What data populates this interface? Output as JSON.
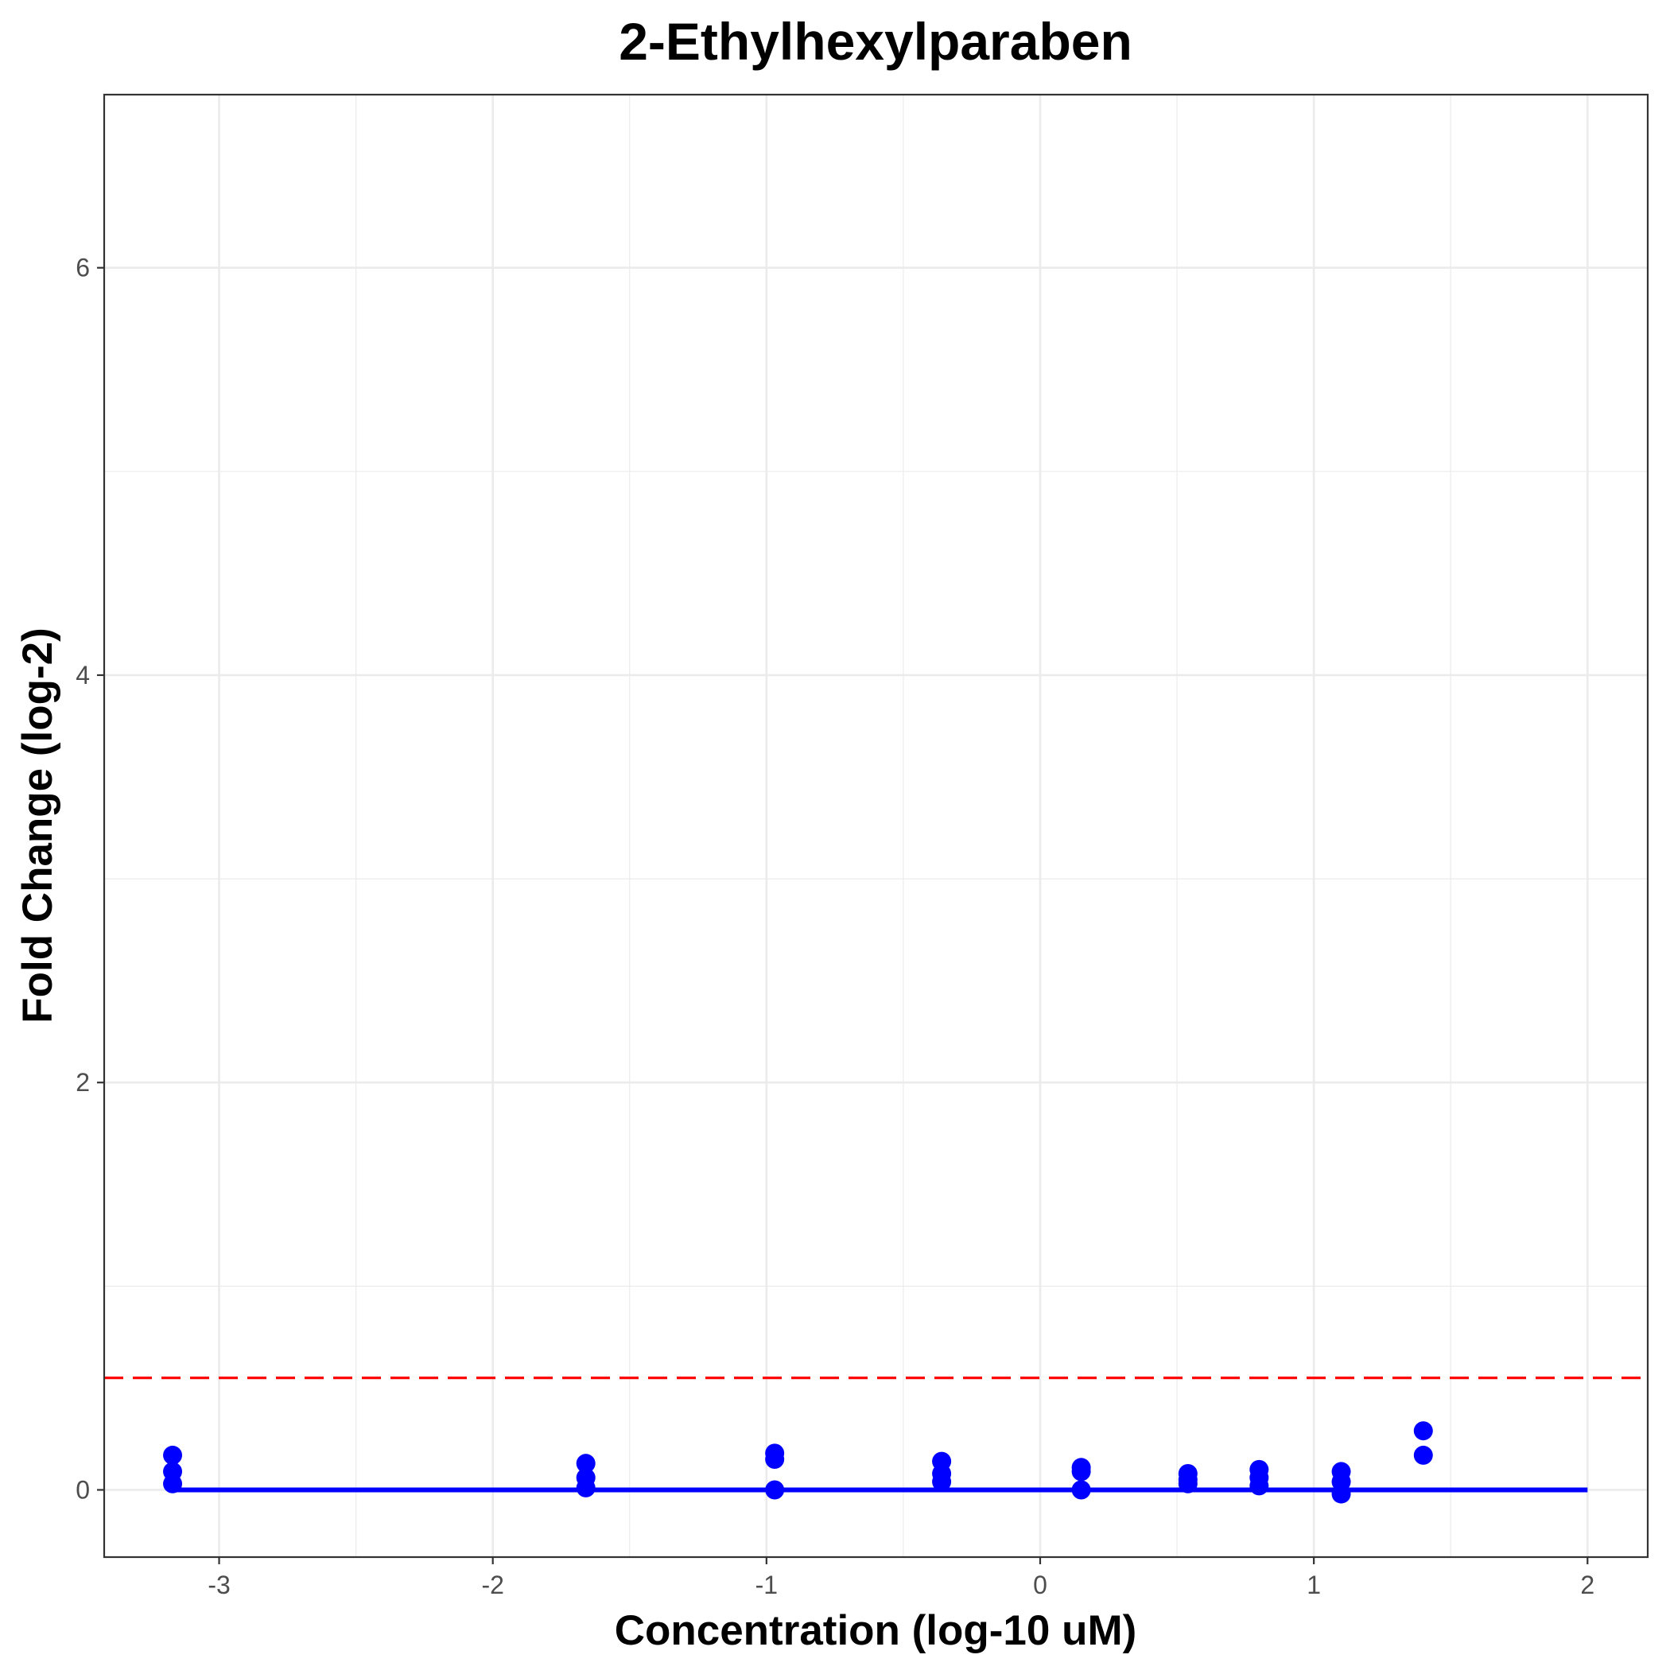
{
  "chart_data": {
    "type": "scatter",
    "title": "2-Ethylhexylparaben",
    "xlabel": "Concentration (log-10 uM)",
    "ylabel": "Fold Change (log-2)",
    "xlim": [
      -3.42,
      2.22
    ],
    "ylim": [
      -0.33,
      6.85
    ],
    "x_ticks": [
      -3,
      -2,
      -1,
      0,
      1,
      2
    ],
    "y_ticks": [
      0,
      2,
      4,
      6
    ],
    "grid": true,
    "legend": "none",
    "series": [
      {
        "type": "scatter",
        "color": "#0000ff",
        "points": [
          {
            "x": -3.17,
            "y": 0.17
          },
          {
            "x": -3.17,
            "y": 0.09
          },
          {
            "x": -3.17,
            "y": 0.03
          },
          {
            "x": -1.66,
            "y": 0.13
          },
          {
            "x": -1.66,
            "y": 0.06
          },
          {
            "x": -1.66,
            "y": 0.01
          },
          {
            "x": -0.97,
            "y": 0.18
          },
          {
            "x": -0.97,
            "y": 0.15
          },
          {
            "x": -0.97,
            "y": 0.0
          },
          {
            "x": -0.36,
            "y": 0.14
          },
          {
            "x": -0.36,
            "y": 0.08
          },
          {
            "x": -0.36,
            "y": 0.04
          },
          {
            "x": 0.15,
            "y": 0.11
          },
          {
            "x": 0.15,
            "y": 0.09
          },
          {
            "x": 0.15,
            "y": 0.0
          },
          {
            "x": 0.54,
            "y": 0.08
          },
          {
            "x": 0.54,
            "y": 0.05
          },
          {
            "x": 0.54,
            "y": 0.03
          },
          {
            "x": 0.8,
            "y": 0.1
          },
          {
            "x": 0.8,
            "y": 0.06
          },
          {
            "x": 0.8,
            "y": 0.02
          },
          {
            "x": 1.1,
            "y": 0.09
          },
          {
            "x": 1.1,
            "y": 0.04
          },
          {
            "x": 1.1,
            "y": -0.02
          },
          {
            "x": 1.4,
            "y": 0.29
          },
          {
            "x": 1.4,
            "y": 0.17
          }
        ]
      },
      {
        "type": "line",
        "color": "#0000ff",
        "x": [
          -3.17,
          2.0
        ],
        "y": [
          0.0,
          0.0
        ]
      },
      {
        "type": "hline",
        "style": "dashed",
        "color": "#ff0000",
        "y": 0.55
      }
    ]
  }
}
